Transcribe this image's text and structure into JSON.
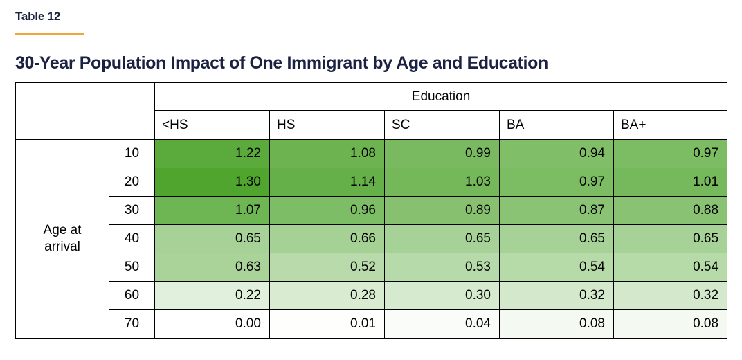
{
  "header": {
    "table_label": "Table 12"
  },
  "colors": {
    "accent_underline": "#F2A33C",
    "heading_text": "#1B2141",
    "table_border": "#000000",
    "cell_text": "#000000"
  },
  "chart_data": {
    "type": "heatmap",
    "title": "30-Year Population Impact of One Immigrant by Age and Education",
    "x_axis_label": "Education",
    "y_axis_label": "Age at\narrival",
    "x_categories": [
      "<HS",
      "HS",
      "SC",
      "BA",
      "BA+"
    ],
    "y_categories": [
      "10",
      "20",
      "30",
      "40",
      "50",
      "60",
      "70"
    ],
    "values": [
      [
        1.22,
        1.08,
        0.99,
        0.94,
        0.97
      ],
      [
        1.3,
        1.14,
        1.03,
        0.97,
        1.01
      ],
      [
        1.07,
        0.96,
        0.89,
        0.87,
        0.88
      ],
      [
        0.65,
        0.66,
        0.65,
        0.65,
        0.65
      ],
      [
        0.63,
        0.52,
        0.53,
        0.54,
        0.54
      ],
      [
        0.22,
        0.28,
        0.3,
        0.32,
        0.32
      ],
      [
        0.0,
        0.01,
        0.04,
        0.08,
        0.08
      ]
    ],
    "value_labels": [
      [
        "1.22",
        "1.08",
        "0.99",
        "0.94",
        "0.97"
      ],
      [
        "1.30",
        "1.14",
        "1.03",
        "0.97",
        "1.01"
      ],
      [
        "1.07",
        "0.96",
        "0.89",
        "0.87",
        "0.88"
      ],
      [
        "0.65",
        "0.66",
        "0.65",
        "0.65",
        "0.65"
      ],
      [
        "0.63",
        "0.52",
        "0.53",
        "0.54",
        "0.54"
      ],
      [
        "0.22",
        "0.28",
        "0.30",
        "0.32",
        "0.32"
      ],
      [
        "0.00",
        "0.01",
        "0.04",
        "0.08",
        "0.08"
      ]
    ],
    "color_scale": {
      "min_value": 0,
      "max_value": 1.3,
      "min_color": "#FFFFFF",
      "max_color": "#4FA52E"
    },
    "layout": {
      "cell_value_align": "right",
      "grid": true,
      "legend": "none"
    }
  }
}
